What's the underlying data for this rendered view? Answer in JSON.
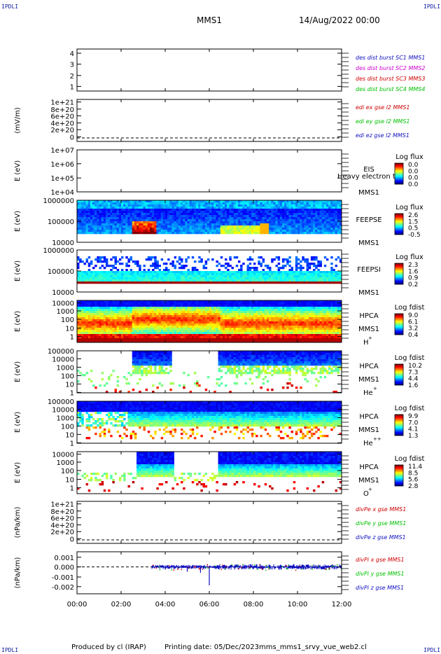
{
  "header": {
    "spacecraft": "MMS1",
    "date": "14/Aug/2022 00:00",
    "corner_label": "IPDLI"
  },
  "footer": {
    "produced_by": "Produced by cl (IRAP)",
    "printing_date": "Printing date: 05/Dec/2023",
    "script": "mms_mms1_srvy_vue_web2.cl"
  },
  "time_axis": {
    "ticks": [
      "00:00",
      "02:00",
      "04:00",
      "06:00",
      "08:00",
      "10:00",
      "12:00"
    ],
    "range_hours": [
      0,
      12
    ]
  },
  "colors": {
    "blue": "#1010c0",
    "magenta": "#d000d0",
    "red": "#d00000",
    "green": "#00c000"
  },
  "chart_data": [
    {
      "id": "des-dist",
      "type": "line",
      "ylabel": "",
      "yticks": [
        "4",
        "3",
        "2",
        "1"
      ],
      "ylim": [
        0.6,
        4.4
      ],
      "legend": [
        {
          "text": "des dist burst SC1 MMS1",
          "color": "#1010c0"
        },
        {
          "text": "des dist burst SC2 MMS2",
          "color": "#d000d0"
        },
        {
          "text": "des dist burst SC3 MMS3",
          "color": "#d00000"
        },
        {
          "text": "des dist burst SC4 MMS4",
          "color": "#00c000"
        }
      ],
      "series": []
    },
    {
      "id": "edi-e",
      "type": "line",
      "ylabel": "(mV/m)",
      "yticks": [
        "1e+21",
        "8e+20",
        "6e+20",
        "4e+20",
        "2e+20",
        "0"
      ],
      "ylim": [
        0,
        1e+21
      ],
      "zero_line": true,
      "legend": [
        {
          "text": "edi ex gse l2 MMS1",
          "color": "#d00000"
        },
        {
          "text": "edi ey gse l2 MMS1",
          "color": "#00c000"
        },
        {
          "text": "edi ez gse l2 MMS1",
          "color": "#1010c0"
        }
      ],
      "series": []
    },
    {
      "id": "eis",
      "type": "heatmap",
      "ylabel": "E (eV)",
      "yticks": [
        "1e+07",
        "1e+06",
        "1e+05",
        "1e+04"
      ],
      "ylim": [
        10000,
        10000000
      ],
      "log": true,
      "labels": [
        "EIS",
        "MMS1"
      ],
      "overlay_text": "Heavy electron tof",
      "colorbar": {
        "title": "Log flux",
        "ticks": [
          "0.0",
          "0.0",
          "0.0",
          "0.0"
        ]
      },
      "data_coverage": []
    },
    {
      "id": "feepse",
      "type": "heatmap",
      "ylabel": "E (eV)",
      "yticks": [
        "1000000",
        "100000",
        "10000"
      ],
      "ylim": [
        10000,
        1000000
      ],
      "log": true,
      "labels": [
        "FEEPSE",
        "MMS1"
      ],
      "colorbar": {
        "title": "Log flux",
        "ticks": [
          "2.6",
          "1.5",
          "0.5",
          "-0.5"
        ]
      },
      "data_coverage": [
        0,
        12
      ]
    },
    {
      "id": "feepsi",
      "type": "heatmap",
      "ylabel": "E (eV)",
      "yticks": [
        "1000000",
        "100000",
        "10000"
      ],
      "ylim": [
        10000,
        1000000
      ],
      "log": true,
      "labels": [
        "FEEPSI",
        "MMS1"
      ],
      "colorbar": {
        "title": "Log flux",
        "ticks": [
          "2.3",
          "1.6",
          "0.9",
          "0.2"
        ]
      },
      "data_coverage": [
        0,
        12
      ]
    },
    {
      "id": "hpca-h",
      "type": "heatmap",
      "ylabel": "E (eV)",
      "yticks": [
        "10000",
        "1000",
        "100",
        "10",
        "1"
      ],
      "ylim": [
        1,
        40000
      ],
      "log": true,
      "labels": [
        "HPCA",
        "MMS1",
        "H",
        "+"
      ],
      "colorbar": {
        "title": "Log fdist",
        "ticks": [
          "9.0",
          "6.1",
          "3.2",
          "0.4"
        ]
      },
      "data_coverage": [
        0,
        12
      ]
    },
    {
      "id": "hpca-he",
      "type": "heatmap",
      "ylabel": "E (eV)",
      "yticks": [
        "100000",
        "10000",
        "1000",
        "100",
        "10",
        "1"
      ],
      "ylim": [
        1,
        100000
      ],
      "log": true,
      "labels": [
        "HPCA",
        "MMS1",
        "He",
        "+"
      ],
      "colorbar": {
        "title": "Log fdist",
        "ticks": [
          "10.2",
          "7.3",
          "4.4",
          "1.6"
        ]
      },
      "data_coverage": [
        0,
        12
      ]
    },
    {
      "id": "hpca-he2",
      "type": "heatmap",
      "ylabel": "E (eV)",
      "yticks": [
        "100000",
        "10000",
        "1000",
        "100",
        "10",
        "1"
      ],
      "ylim": [
        1,
        100000
      ],
      "log": true,
      "labels": [
        "HPCA",
        "MMS1",
        "He",
        "++"
      ],
      "colorbar": {
        "title": "Log fdist",
        "ticks": [
          "9.9",
          "7.0",
          "4.1",
          "1.3"
        ]
      },
      "data_coverage": [
        0,
        12
      ]
    },
    {
      "id": "hpca-o",
      "type": "heatmap",
      "ylabel": "E (eV)",
      "yticks": [
        "10000",
        "1000",
        "100",
        "10",
        "1"
      ],
      "ylim": [
        1,
        40000
      ],
      "log": true,
      "labels": [
        "HPCA",
        "MMS1",
        "O",
        "+"
      ],
      "colorbar": {
        "title": "Log fdist",
        "ticks": [
          "11.4",
          "8.5",
          "5.6",
          "2.8"
        ]
      },
      "data_coverage": [
        0,
        12
      ]
    },
    {
      "id": "divpe",
      "type": "line",
      "ylabel": "(nPa/km)",
      "yticks": [
        "1e+21",
        "8e+20",
        "6e+20",
        "4e+20",
        "2e+20",
        "0"
      ],
      "ylim": [
        0,
        1e+21
      ],
      "zero_line": true,
      "legend": [
        {
          "text": "divPe x gse MMS1",
          "color": "#d00000"
        },
        {
          "text": "divPe y gse MMS1",
          "color": "#00c000"
        },
        {
          "text": "divPe z gse MMS1",
          "color": "#1010c0"
        }
      ],
      "series": []
    },
    {
      "id": "divpi",
      "type": "line",
      "ylabel": "(nPa/km)",
      "yticks": [
        "0.001",
        "0.000",
        "-0.001",
        "-0.002"
      ],
      "ylim": [
        -0.0025,
        0.0015
      ],
      "zero_line": true,
      "legend": [
        {
          "text": "divPi x gse MMS1",
          "color": "#d00000"
        },
        {
          "text": "divPi y gse MMS1",
          "color": "#00c000"
        },
        {
          "text": "divPi z gse MMS1",
          "color": "#1010c0"
        }
      ],
      "series_coverage": [
        3.4,
        12
      ],
      "series": [
        {
          "name": "divPi z gse MMS1",
          "x": [
            3.4,
            4.0,
            5.0,
            5.6,
            6.0,
            6.4,
            8.0,
            10.0,
            12.0
          ],
          "y": [
            0.0,
            -0.0002,
            -0.0004,
            -0.0005,
            -0.0017,
            0.0002,
            0.0,
            0.0,
            0.0
          ]
        }
      ]
    }
  ]
}
